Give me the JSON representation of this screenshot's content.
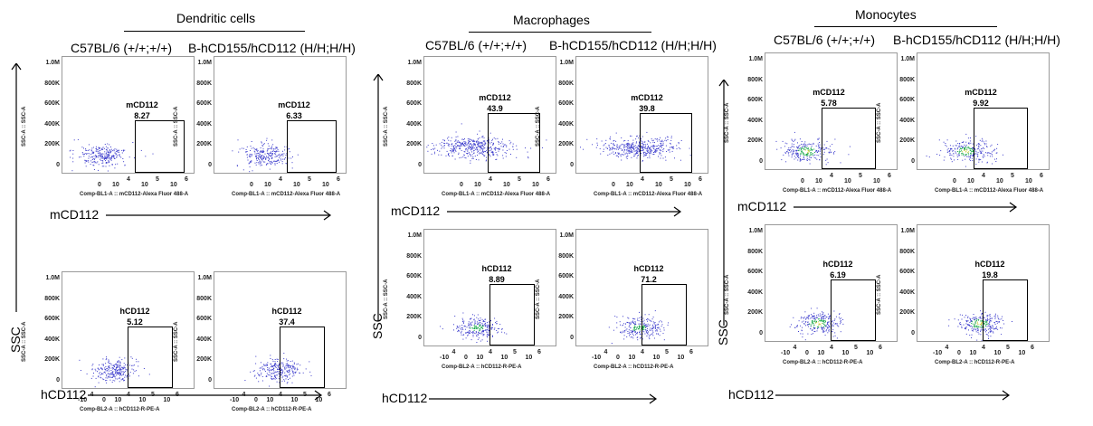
{
  "panels": [
    {
      "title": "Dendritic cells",
      "geno_left": "C57BL/6 (+/+;+/+)",
      "geno_right": "B-hCD155/hCD112 (H/H;H/H)",
      "row1_marker": "mCD112",
      "row2_marker": "hCD112",
      "row1_values": [
        "8.27",
        "6.33"
      ],
      "row2_values": [
        "5.12",
        "37.4"
      ]
    },
    {
      "title": "Macrophages",
      "geno_left": "C57BL/6 (+/+;+/+)",
      "geno_right": "B-hCD155/hCD112 (H/H;H/H)",
      "row1_marker": "mCD112",
      "row2_marker": "hCD112",
      "row1_values": [
        "43.9",
        "39.8"
      ],
      "row2_values": [
        "8.89",
        "71.2"
      ]
    },
    {
      "title": "Monocytes",
      "geno_left": "C57BL/6 (+/+;+/+)",
      "geno_right": "B-hCD155/hCD112 (H/H;H/H)",
      "row1_marker": "mCD112",
      "row2_marker": "hCD112",
      "row1_values": [
        "5.78",
        "9.92"
      ],
      "row2_values": [
        "6.19",
        "19.8"
      ]
    }
  ],
  "y_axis_label": "SSC-A :: SSC-A",
  "y_ticks": [
    "1.0M",
    "800K",
    "600K",
    "400K",
    "200K",
    "0"
  ],
  "row1_x_label": "Comp-BL1-A :: mCD112-Alexa Fluor 488-A",
  "row1_x_label_short": "mCD112-Alexa Fluor 488-A",
  "row2_x_label": "Comp-BL2-A :: hCD112-R-PE-A",
  "row1_x_ticks": [
    "0",
    "10",
    "4",
    "10",
    "5",
    "10",
    "6"
  ],
  "row2_x_ticks": [
    "-10",
    "4",
    "0",
    "10",
    "4",
    "10",
    "5",
    "10",
    "6"
  ],
  "gate_name_row1": "mCD112",
  "gate_name_row2": "hCD112",
  "ssc_label": "SSC",
  "colors": {
    "dots": "#3d3dcc",
    "dots_dense": "#1aa84a",
    "dense_core": "#c9c92a"
  }
}
